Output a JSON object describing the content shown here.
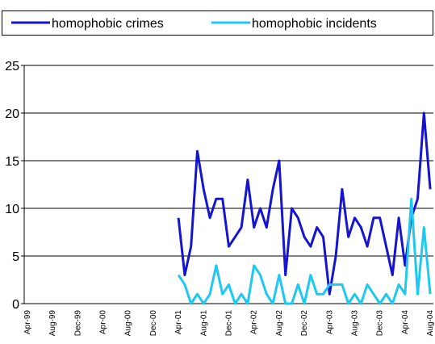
{
  "chart_data": {
    "type": "line",
    "categories": [
      "Apr-99",
      null,
      null,
      null,
      "Aug-99",
      null,
      null,
      null,
      "Dec-99",
      null,
      null,
      null,
      "Apr-00",
      null,
      null,
      null,
      "Aug-00",
      null,
      null,
      null,
      "Dec-00",
      null,
      null,
      null,
      "Apr-01",
      null,
      null,
      null,
      "Aug-01",
      null,
      null,
      null,
      "Dec-01",
      null,
      null,
      null,
      "Apr-02",
      null,
      null,
      null,
      "Aug-02",
      null,
      null,
      null,
      "Dec-02",
      null,
      null,
      null,
      "Apr-03",
      null,
      null,
      null,
      "Aug-03",
      null,
      null,
      null,
      "Dec-03",
      null,
      null,
      null,
      "Apr-04",
      null,
      null,
      null,
      "Aug-04"
    ],
    "series": [
      {
        "name": "homophobic crimes",
        "color": "#1414d2",
        "values": [
          null,
          null,
          null,
          null,
          null,
          null,
          null,
          null,
          null,
          null,
          null,
          null,
          null,
          null,
          null,
          null,
          null,
          null,
          null,
          null,
          null,
          null,
          null,
          null,
          9,
          3,
          6,
          16,
          12,
          9,
          11,
          11,
          6,
          7,
          8,
          13,
          8,
          10,
          8,
          12,
          15,
          3,
          10,
          9,
          7,
          6,
          8,
          7,
          1,
          5,
          12,
          7,
          9,
          8,
          6,
          9,
          9,
          6,
          3,
          9,
          4,
          9,
          11,
          20,
          12
        ]
      },
      {
        "name": "homophobic incidents",
        "color": "#1ec8f0",
        "values": [
          null,
          null,
          null,
          null,
          null,
          null,
          null,
          null,
          null,
          null,
          null,
          null,
          null,
          null,
          null,
          null,
          null,
          null,
          null,
          null,
          null,
          null,
          null,
          null,
          3,
          2,
          0,
          1,
          0,
          1,
          4,
          1,
          2,
          0,
          1,
          0,
          4,
          3,
          1,
          0,
          3,
          0,
          0,
          2,
          0,
          3,
          1,
          1,
          2,
          2,
          2,
          0,
          1,
          0,
          2,
          1,
          0,
          1,
          0,
          2,
          1,
          11,
          1,
          8,
          1
        ]
      }
    ],
    "ylim": [
      0,
      25
    ],
    "yticks": [
      0,
      5,
      10,
      15,
      20,
      25
    ],
    "grid": true,
    "legend": "top"
  }
}
